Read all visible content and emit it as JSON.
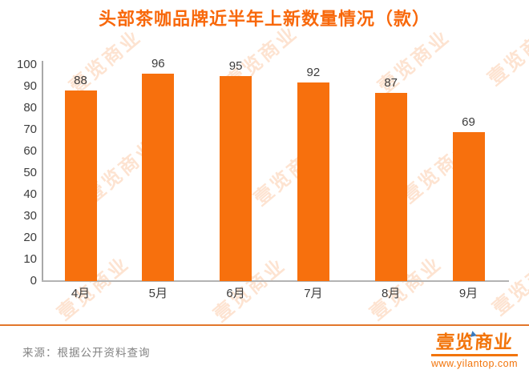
{
  "title": "头部茶咖品牌近半年上新数量情况（款）",
  "chart_data": {
    "type": "bar",
    "categories": [
      "4月",
      "5月",
      "6月",
      "7月",
      "8月",
      "9月"
    ],
    "values": [
      88,
      96,
      95,
      92,
      87,
      69
    ],
    "title": "头部茶咖品牌近半年上新数量情况（款）",
    "xlabel": "",
    "ylabel": "",
    "ylim": [
      0,
      100
    ],
    "yticks": [
      0,
      10,
      20,
      30,
      40,
      50,
      60,
      70,
      80,
      90,
      100
    ],
    "grid": false,
    "legend": "none",
    "value_labels_shown": true,
    "bar_color": "#f7700d"
  },
  "watermark": {
    "text": "壹览商业"
  },
  "footer": {
    "source": "来源：根据公开资料查询",
    "logo_text": "壹览商业",
    "logo_url": "www.yilantop.com"
  },
  "colors": {
    "accent_orange": "#f7700d",
    "title_orange": "#f8680b",
    "divider_orange": "#e2762b",
    "axis_gray": "#a9a9a9",
    "text_dark": "#3c3c3c",
    "source_gray": "#838383"
  }
}
